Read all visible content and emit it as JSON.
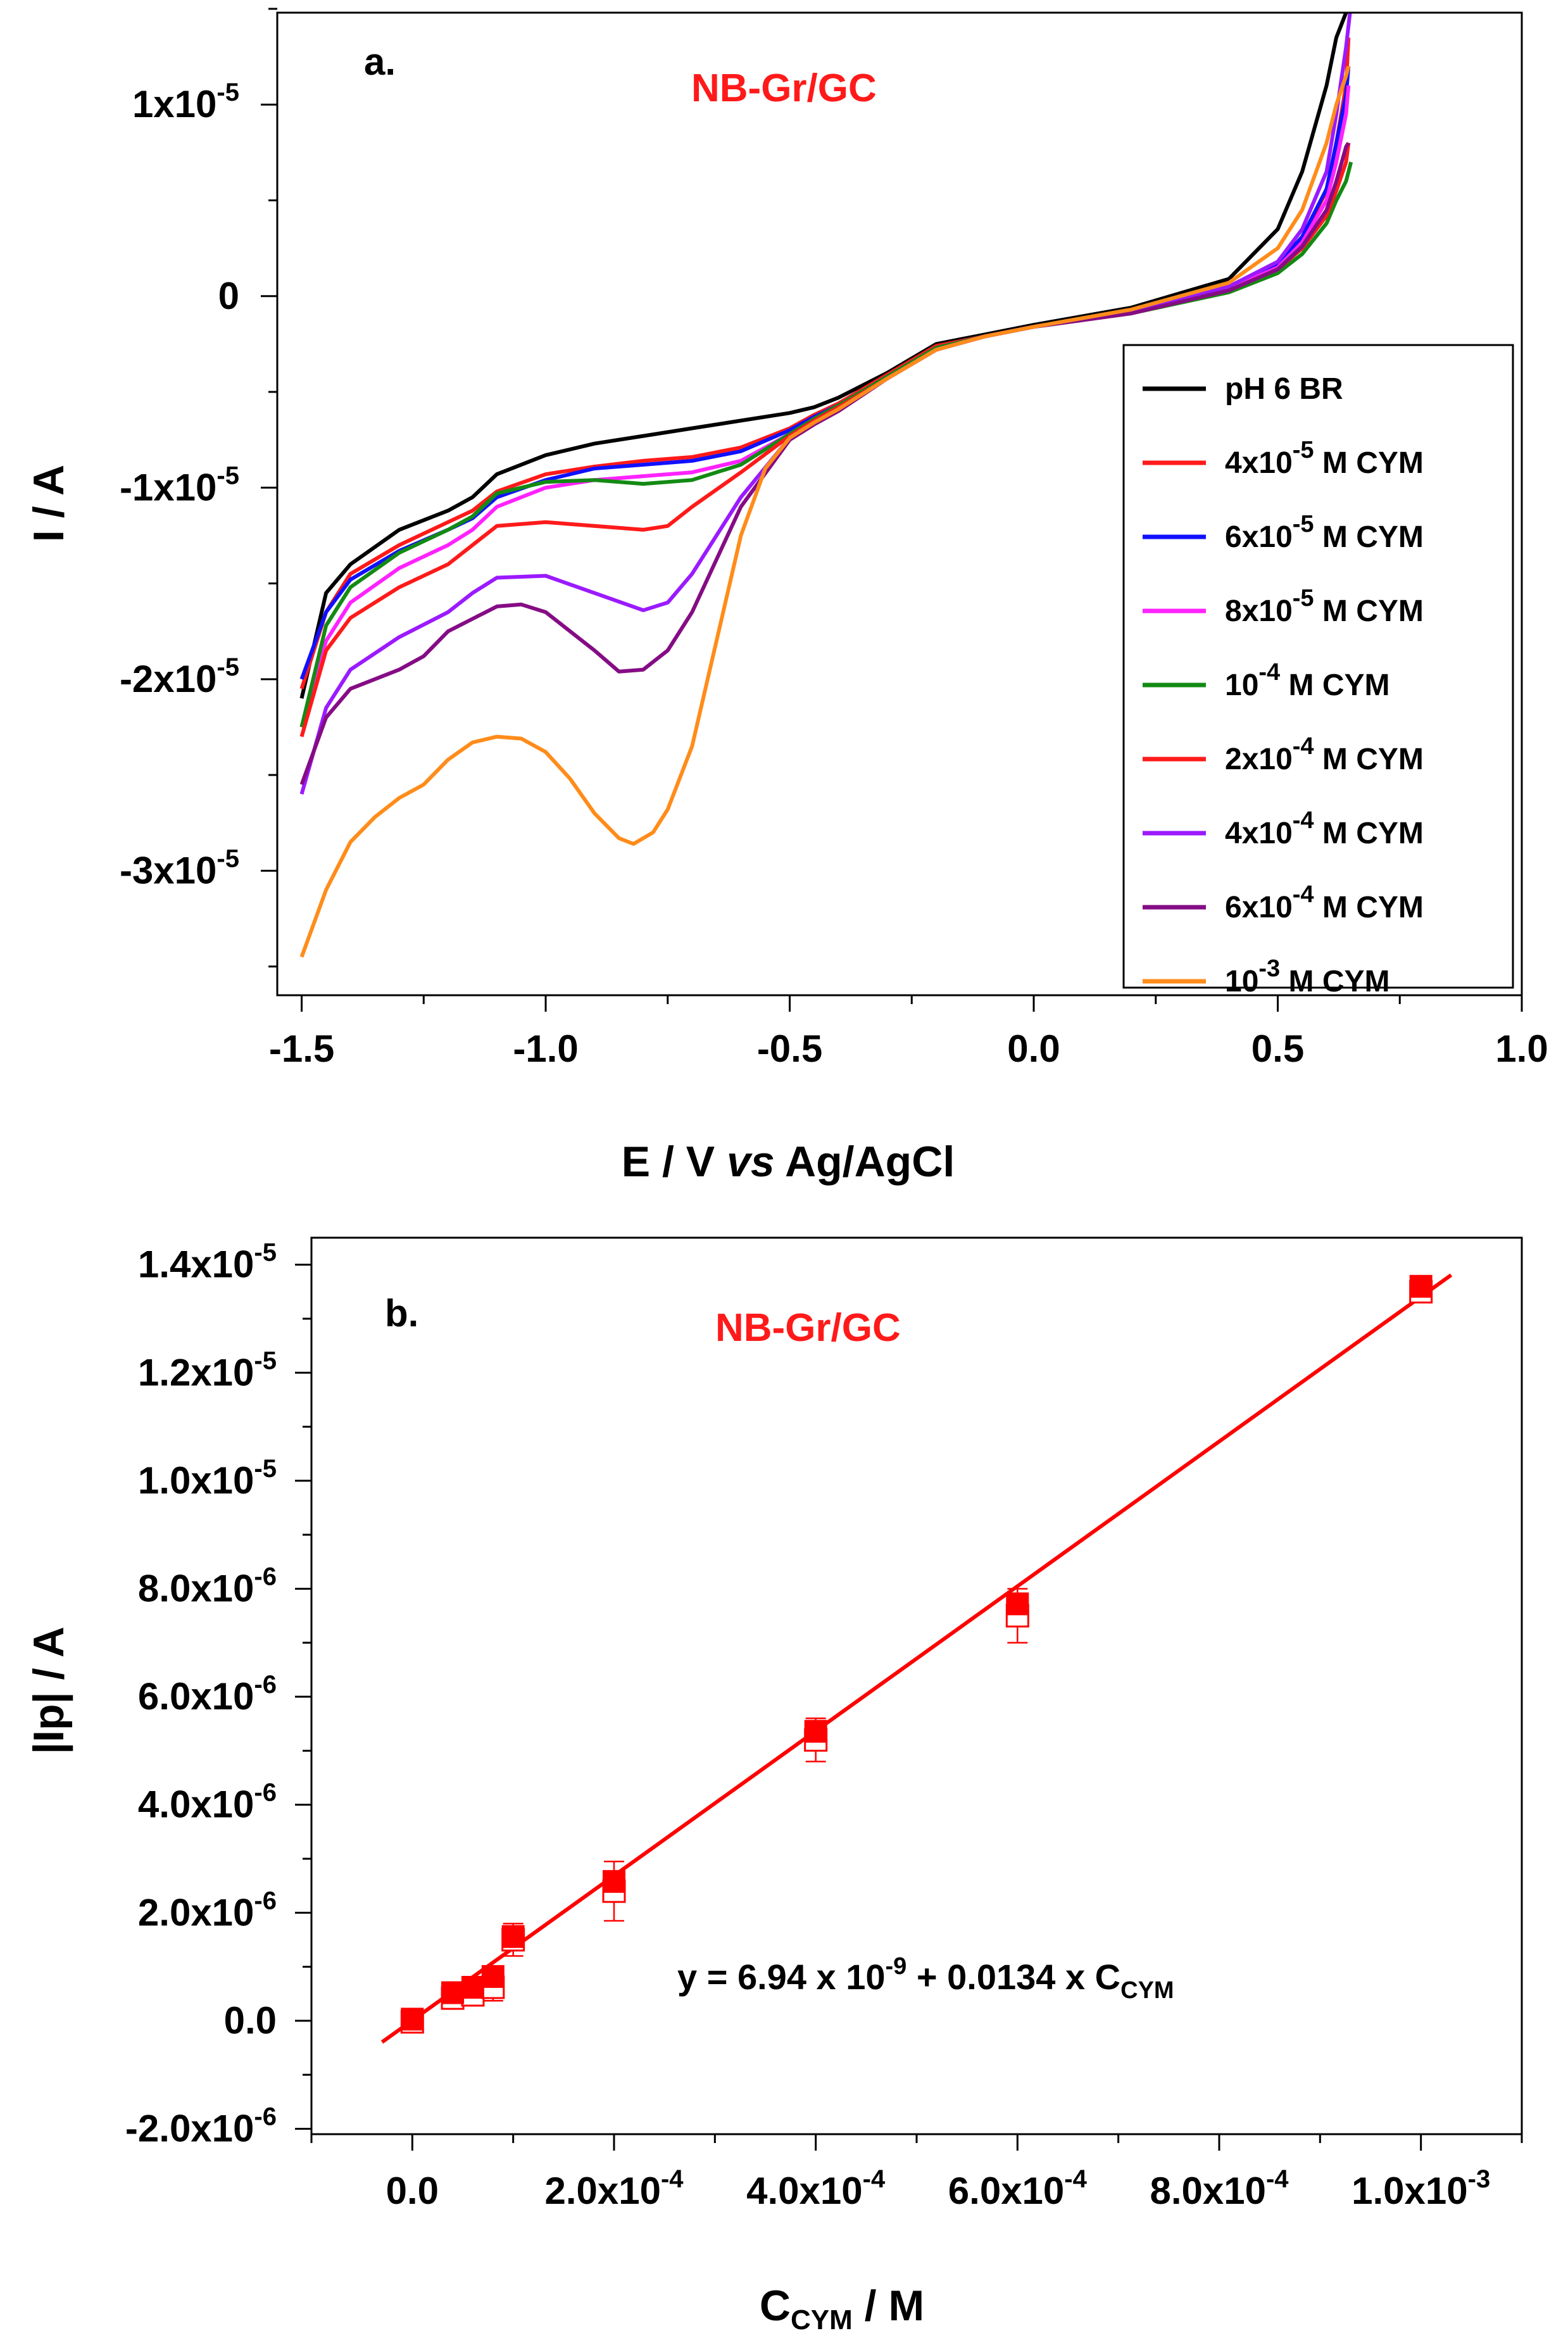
{
  "colors": {
    "background": "#ffffff",
    "axis": "#000000",
    "annotation": "#ff1a1a",
    "fit": "#ff0000"
  },
  "chart_data": [
    {
      "type": "line",
      "panel": "a.",
      "annotation": "NB-Gr/GC",
      "xlabel": {
        "main": "E / V ",
        "italic": "vs",
        "rest": " Ag/AgCl"
      },
      "ylabel": "I / A",
      "xlim": [
        -1.55,
        1.0
      ],
      "ylim": [
        -3.65e-05,
        1.48e-05
      ],
      "x_ticks": [
        -1.5,
        -1.0,
        -0.5,
        0.0,
        0.5,
        1.0
      ],
      "x_tick_labels": [
        "-1.5",
        "-1.0",
        "-0.5",
        "0.0",
        "0.5",
        "1.0"
      ],
      "y_ticks": [
        {
          "value": 1e-05,
          "mant": "1x10",
          "exp": "-5"
        },
        {
          "value": 0,
          "mant": "0",
          "exp": ""
        },
        {
          "value": -1e-05,
          "mant": "-1x10",
          "exp": "-5"
        },
        {
          "value": -2e-05,
          "mant": "-2x10",
          "exp": "-5"
        },
        {
          "value": -3e-05,
          "mant": "-3x10",
          "exp": "-5"
        }
      ],
      "legend_position": "right",
      "series": [
        {
          "base": "pH 6 BR",
          "exp": "",
          "suffix": "",
          "color": "#000000",
          "x": [
            -1.5,
            -1.45,
            -1.4,
            -1.3,
            -1.2,
            -1.15,
            -1.1,
            -1.0,
            -0.9,
            -0.8,
            -0.7,
            -0.6,
            -0.5,
            -0.45,
            -0.4,
            -0.3,
            -0.2,
            -0.1,
            0.0,
            0.2,
            0.4,
            0.5,
            0.55,
            0.6,
            0.62,
            0.64
          ],
          "y": [
            -2.1e-05,
            -1.55e-05,
            -1.4e-05,
            -1.22e-05,
            -1.12e-05,
            -1.05e-05,
            -9.3e-06,
            -8.3e-06,
            -7.7e-06,
            -7.3e-06,
            -6.9e-06,
            -6.5e-06,
            -6.1e-06,
            -5.8e-06,
            -5.3e-06,
            -4e-06,
            -2.5e-06,
            -2e-06,
            -1.5e-06,
            -6e-07,
            9e-07,
            3.5e-06,
            6.5e-06,
            1.1e-05,
            1.35e-05,
            1.5e-05
          ]
        },
        {
          "base": "4x10",
          "exp": "-5",
          "suffix": " M CYM",
          "color": "#ff1a1a",
          "x": [
            -1.5,
            -1.45,
            -1.4,
            -1.3,
            -1.2,
            -1.15,
            -1.1,
            -1.0,
            -0.9,
            -0.8,
            -0.7,
            -0.6,
            -0.5,
            -0.45,
            -0.4,
            -0.3,
            -0.2,
            -0.1,
            0.0,
            0.2,
            0.4,
            0.5,
            0.55,
            0.6,
            0.62,
            0.64,
            0.645
          ],
          "y": [
            -2.05e-05,
            -1.65e-05,
            -1.45e-05,
            -1.3e-05,
            -1.18e-05,
            -1.12e-05,
            -1.02e-05,
            -9.3e-06,
            -8.9e-06,
            -8.6e-06,
            -8.4e-06,
            -7.9e-06,
            -6.9e-06,
            -6.2e-06,
            -5.6e-06,
            -4.1e-06,
            -2.6e-06,
            -2.1e-06,
            -1.6e-06,
            -8e-07,
            4e-07,
            1.6e-06,
            3e-06,
            5.5e-06,
            8e-06,
            1.1e-05,
            1.35e-05
          ]
        },
        {
          "base": "6x10",
          "exp": "-5",
          "suffix": " M CYM",
          "color": "#1010ff",
          "x": [
            -1.5,
            -1.45,
            -1.4,
            -1.3,
            -1.2,
            -1.15,
            -1.1,
            -1.0,
            -0.9,
            -0.8,
            -0.7,
            -0.6,
            -0.5,
            -0.45,
            -0.4,
            -0.3,
            -0.2,
            -0.1,
            0.0,
            0.2,
            0.4,
            0.5,
            0.55,
            0.6,
            0.62,
            0.64,
            0.645
          ],
          "y": [
            -2e-05,
            -1.65e-05,
            -1.48e-05,
            -1.33e-05,
            -1.22e-05,
            -1.16e-05,
            -1.05e-05,
            -9.6e-06,
            -9e-06,
            -8.8e-06,
            -8.6e-06,
            -8.1e-06,
            -7e-06,
            -6.3e-06,
            -5.7e-06,
            -4.2e-06,
            -2.7e-06,
            -2.1e-06,
            -1.6e-06,
            -8e-07,
            5e-07,
            1.7e-06,
            3.1e-06,
            5.6e-06,
            8e-06,
            1.05e-05,
            1.2e-05
          ]
        },
        {
          "base": "8x10",
          "exp": "-5",
          "suffix": " M CYM",
          "color": "#ff22ff",
          "x": [
            -1.5,
            -1.45,
            -1.4,
            -1.3,
            -1.2,
            -1.15,
            -1.1,
            -1.0,
            -0.9,
            -0.8,
            -0.7,
            -0.6,
            -0.5,
            -0.45,
            -0.4,
            -0.3,
            -0.2,
            -0.1,
            0.0,
            0.2,
            0.4,
            0.5,
            0.55,
            0.6,
            0.62,
            0.64,
            0.645
          ],
          "y": [
            -2.25e-05,
            -1.8e-05,
            -1.6e-05,
            -1.42e-05,
            -1.3e-05,
            -1.22e-05,
            -1.1e-05,
            -1e-05,
            -9.6e-06,
            -9.4e-06,
            -9.2e-06,
            -8.6e-06,
            -7.2e-06,
            -6.4e-06,
            -5.7e-06,
            -4.2e-06,
            -2.7e-06,
            -2.1e-06,
            -1.6e-06,
            -8e-07,
            4e-07,
            1.5e-06,
            2.8e-06,
            5e-06,
            7e-06,
            9.5e-06,
            1.1e-05
          ]
        },
        {
          "base": "10",
          "exp": "-4",
          "suffix": " M CYM",
          "color": "#138a13",
          "x": [
            -1.5,
            -1.45,
            -1.4,
            -1.3,
            -1.2,
            -1.15,
            -1.1,
            -1.0,
            -0.9,
            -0.8,
            -0.7,
            -0.6,
            -0.5,
            -0.45,
            -0.4,
            -0.3,
            -0.2,
            -0.1,
            0.0,
            0.2,
            0.4,
            0.5,
            0.55,
            0.6,
            0.62,
            0.64,
            0.65
          ],
          "y": [
            -2.25e-05,
            -1.72e-05,
            -1.52e-05,
            -1.34e-05,
            -1.22e-05,
            -1.15e-05,
            -1.03e-05,
            -9.7e-06,
            -9.6e-06,
            -9.8e-06,
            -9.6e-06,
            -8.8e-06,
            -7.2e-06,
            -6.4e-06,
            -5.7e-06,
            -4.2e-06,
            -2.7e-06,
            -2.1e-06,
            -1.6e-06,
            -9e-07,
            2e-07,
            1.2e-06,
            2.2e-06,
            3.8e-06,
            5e-06,
            6e-06,
            7e-06
          ]
        },
        {
          "base": "2x10",
          "exp": "-4",
          "suffix": " M CYM",
          "color": "#ff1a1a",
          "x": [
            -1.5,
            -1.45,
            -1.4,
            -1.3,
            -1.2,
            -1.15,
            -1.1,
            -1.0,
            -0.9,
            -0.8,
            -0.75,
            -0.7,
            -0.6,
            -0.5,
            -0.45,
            -0.4,
            -0.3,
            -0.2,
            -0.1,
            0.0,
            0.2,
            0.4,
            0.5,
            0.55,
            0.6,
            0.62,
            0.64,
            0.645
          ],
          "y": [
            -2.3e-05,
            -1.85e-05,
            -1.68e-05,
            -1.52e-05,
            -1.4e-05,
            -1.3e-05,
            -1.2e-05,
            -1.18e-05,
            -1.2e-05,
            -1.22e-05,
            -1.2e-05,
            -1.1e-05,
            -9.2e-06,
            -7.3e-06,
            -6.5e-06,
            -5.8e-06,
            -4.3e-06,
            -2.8e-06,
            -2.1e-06,
            -1.6e-06,
            -9e-07,
            3e-07,
            1.4e-06,
            2.5e-06,
            4.2e-06,
            5.5e-06,
            7e-06,
            8e-06
          ]
        },
        {
          "base": "4x10",
          "exp": "-4",
          "suffix": " M CYM",
          "color": "#9b1aff",
          "x": [
            -1.5,
            -1.45,
            -1.4,
            -1.3,
            -1.2,
            -1.15,
            -1.1,
            -1.0,
            -0.9,
            -0.8,
            -0.75,
            -0.7,
            -0.6,
            -0.5,
            -0.45,
            -0.4,
            -0.3,
            -0.2,
            -0.1,
            0.0,
            0.2,
            0.4,
            0.5,
            0.55,
            0.6,
            0.62,
            0.64,
            0.648
          ],
          "y": [
            -2.6e-05,
            -2.15e-05,
            -1.95e-05,
            -1.78e-05,
            -1.65e-05,
            -1.55e-05,
            -1.47e-05,
            -1.46e-05,
            -1.55e-05,
            -1.64e-05,
            -1.6e-05,
            -1.45e-05,
            -1.05e-05,
            -7.4e-06,
            -6.6e-06,
            -5.9e-06,
            -4.3e-06,
            -2.8e-06,
            -2.1e-06,
            -1.6e-06,
            -8e-07,
            5e-07,
            1.8e-06,
            3.5e-06,
            6.5e-06,
            9.5e-06,
            1.3e-05,
            1.48e-05
          ]
        },
        {
          "base": "6x10",
          "exp": "-4",
          "suffix": " M CYM",
          "color": "#850c85",
          "x": [
            -1.5,
            -1.45,
            -1.4,
            -1.3,
            -1.25,
            -1.2,
            -1.1,
            -1.05,
            -1.0,
            -0.9,
            -0.85,
            -0.8,
            -0.75,
            -0.7,
            -0.6,
            -0.5,
            -0.45,
            -0.4,
            -0.3,
            -0.2,
            -0.1,
            0.0,
            0.2,
            0.4,
            0.5,
            0.55,
            0.6,
            0.62,
            0.64,
            0.645
          ],
          "y": [
            -2.55e-05,
            -2.2e-05,
            -2.05e-05,
            -1.95e-05,
            -1.88e-05,
            -1.75e-05,
            -1.62e-05,
            -1.61e-05,
            -1.65e-05,
            -1.85e-05,
            -1.96e-05,
            -1.95e-05,
            -1.85e-05,
            -1.65e-05,
            -1.1e-05,
            -7.5e-06,
            -6.7e-06,
            -6e-06,
            -4.3e-06,
            -2.8e-06,
            -2.1e-06,
            -1.6e-06,
            -9e-07,
            3e-07,
            1.4e-06,
            2.6e-06,
            4.5e-06,
            6e-06,
            7.8e-06,
            8e-06
          ]
        },
        {
          "base": "10",
          "exp": "-3",
          "suffix": " M CYM",
          "color": "#ff8c1a",
          "x": [
            -1.5,
            -1.45,
            -1.4,
            -1.35,
            -1.3,
            -1.25,
            -1.2,
            -1.15,
            -1.1,
            -1.05,
            -1.0,
            -0.95,
            -0.9,
            -0.85,
            -0.82,
            -0.78,
            -0.75,
            -0.7,
            -0.65,
            -0.6,
            -0.55,
            -0.5,
            -0.45,
            -0.4,
            -0.3,
            -0.2,
            -0.1,
            0.0,
            0.2,
            0.4,
            0.5,
            0.55,
            0.6,
            0.62,
            0.64,
            0.645
          ],
          "y": [
            -3.45e-05,
            -3.1e-05,
            -2.85e-05,
            -2.72e-05,
            -2.62e-05,
            -2.55e-05,
            -2.42e-05,
            -2.33e-05,
            -2.3e-05,
            -2.31e-05,
            -2.38e-05,
            -2.52e-05,
            -2.7e-05,
            -2.83e-05,
            -2.86e-05,
            -2.8e-05,
            -2.68e-05,
            -2.35e-05,
            -1.8e-05,
            -1.25e-05,
            -9e-06,
            -7.4e-06,
            -6.6e-06,
            -5.9e-06,
            -4.3e-06,
            -2.8e-06,
            -2.1e-06,
            -1.6e-06,
            -7e-07,
            7e-07,
            2.5e-06,
            4.5e-06,
            8e-06,
            1e-05,
            1.15e-05,
            1.2e-05
          ]
        }
      ]
    },
    {
      "type": "scatter",
      "panel": "b.",
      "annotation": "NB-Gr/GC",
      "equation": {
        "pre": "y = 6.94 x 10",
        "exp": "-9",
        "mid": " + 0.0134 x C",
        "sub": "CYM"
      },
      "xlabel": {
        "main": "C",
        "sub": "CYM",
        "rest": " / M"
      },
      "ylabel": "|Ip| / A",
      "xlim": [
        -0.0001,
        0.0011
      ],
      "ylim": [
        -2.1e-06,
        1.45e-05
      ],
      "x_ticks": [
        {
          "value": 0,
          "mant": "0.0",
          "exp": ""
        },
        {
          "value": 0.0002,
          "mant": "2.0x10",
          "exp": "-4"
        },
        {
          "value": 0.0004,
          "mant": "4.0x10",
          "exp": "-4"
        },
        {
          "value": 0.0006,
          "mant": "6.0x10",
          "exp": "-4"
        },
        {
          "value": 0.0008,
          "mant": "8.0x10",
          "exp": "-4"
        },
        {
          "value": 0.001,
          "mant": "1.0x10",
          "exp": "-3"
        }
      ],
      "y_ticks": [
        {
          "value": 1.4e-05,
          "mant": "1.4x10",
          "exp": "-5"
        },
        {
          "value": 1.2e-05,
          "mant": "1.2x10",
          "exp": "-5"
        },
        {
          "value": 1e-05,
          "mant": "1.0x10",
          "exp": "-5"
        },
        {
          "value": 8e-06,
          "mant": "8.0x10",
          "exp": "-6"
        },
        {
          "value": 6e-06,
          "mant": "6.0x10",
          "exp": "-6"
        },
        {
          "value": 4e-06,
          "mant": "4.0x10",
          "exp": "-6"
        },
        {
          "value": 2e-06,
          "mant": "2.0x10",
          "exp": "-6"
        },
        {
          "value": 0,
          "mant": "0.0",
          "exp": ""
        },
        {
          "value": -2e-06,
          "mant": "-2.0x10",
          "exp": "-6"
        }
      ],
      "points_filled": {
        "x": [
          0,
          4e-05,
          6e-05,
          8e-05,
          0.0001,
          0.0002,
          0.0004,
          0.0006,
          0.001
        ],
        "y": [
          3e-08,
          5.2e-07,
          6.2e-07,
          8.2e-07,
          1.56e-06,
          2.58e-06,
          5.36e-06,
          7.72e-06,
          1.36e-05
        ]
      },
      "points_open": {
        "x": [
          0,
          4e-05,
          6e-05,
          8e-05,
          0.0001,
          0.0002,
          0.0004,
          0.0006,
          0.001
        ],
        "y": [
          -2e-08,
          4.2e-07,
          4.8e-07,
          6.2e-07,
          1.5e-06,
          2.4e-06,
          5.2e-06,
          7.5e-06,
          1.35e-05
        ],
        "err": [
          1.5e-07,
          1.8e-07,
          2e-07,
          2.5e-07,
          3e-07,
          5.5e-07,
          4e-07,
          5e-07,
          1.5e-07
        ]
      },
      "fit": {
        "intercept": 6.94e-09,
        "slope": 0.0134,
        "x_range": [
          -3e-05,
          0.00103
        ]
      }
    }
  ]
}
